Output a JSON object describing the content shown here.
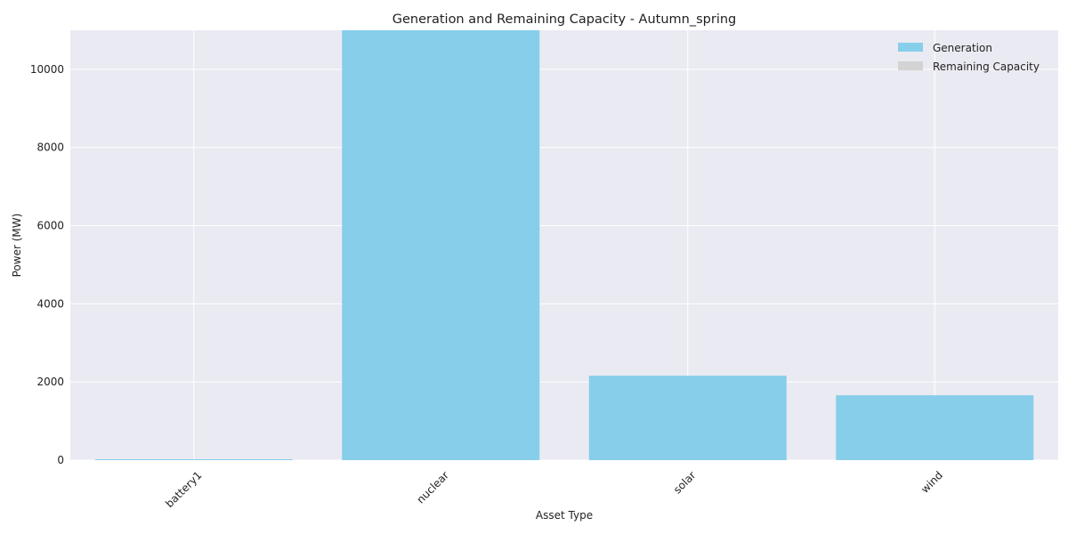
{
  "chart_data": {
    "type": "bar",
    "stacked": true,
    "title": "Generation and Remaining Capacity - Autumn_spring",
    "xlabel": "Asset Type",
    "ylabel": "Power (MW)",
    "categories": [
      "battery1",
      "nuclear",
      "solar",
      "wind"
    ],
    "series": [
      {
        "name": "Generation",
        "color": "#87ceeb",
        "values": [
          10,
          11000,
          2160,
          1660
        ]
      },
      {
        "name": "Remaining Capacity",
        "color": "#d3d3d3",
        "values": [
          0,
          0,
          0,
          0
        ]
      }
    ],
    "ylim": [
      0,
      11000
    ],
    "yticks": [
      0,
      2000,
      4000,
      6000,
      8000,
      10000
    ],
    "grid": true,
    "legend_position": "top-right",
    "background_color": "#eaeaf2"
  }
}
